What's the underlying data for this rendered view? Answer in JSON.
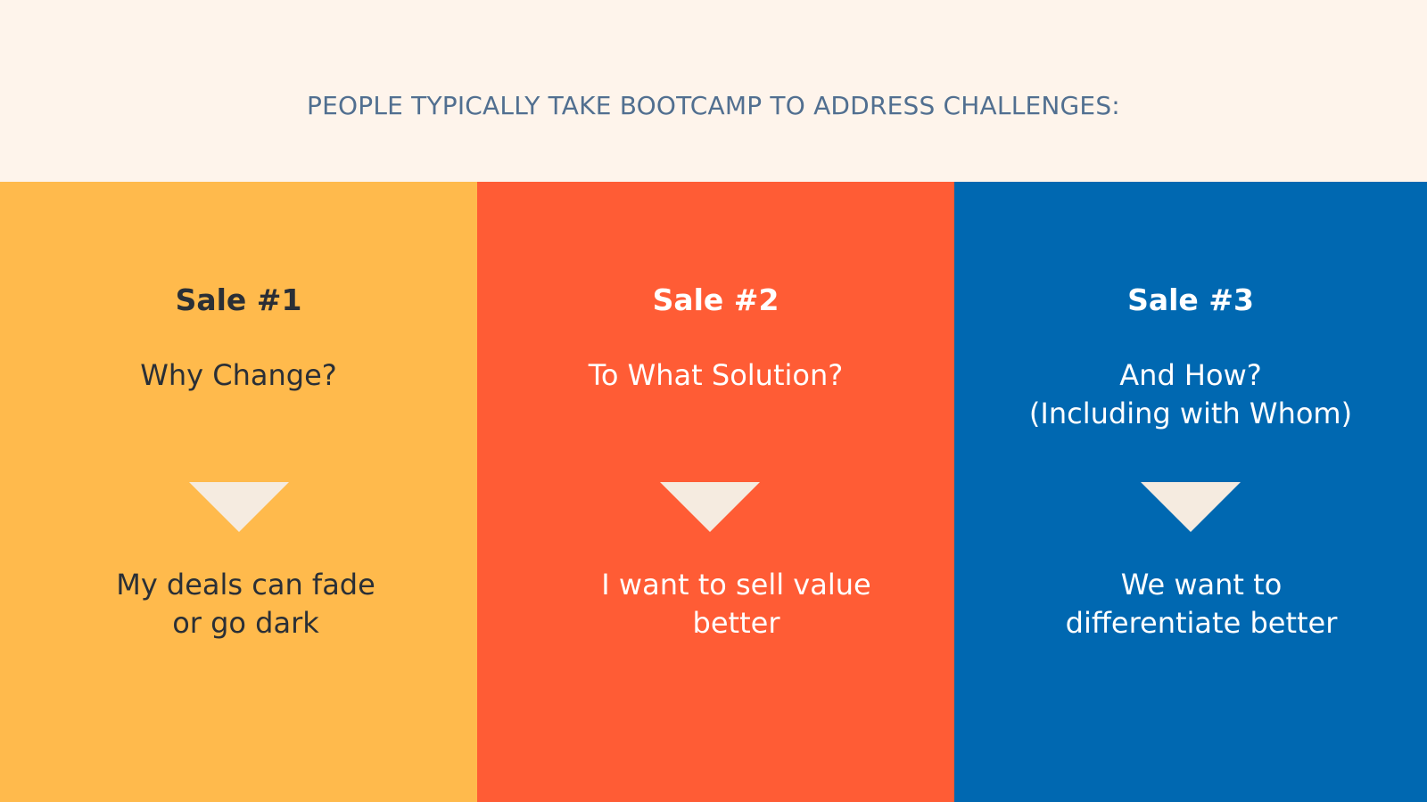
{
  "header": {
    "text": "PEOPLE TYPICALLY TAKE BOOTCAMP TO ADDRESS CHALLENGES:"
  },
  "panels": [
    {
      "title": "Sale #1",
      "question": "Why Change?",
      "answer": "My deals can fade\nor go dark",
      "background": "#FFBA4C",
      "text_color": "#2A2F36"
    },
    {
      "title": "Sale #2",
      "question": "To What Solution?",
      "answer": "I want to sell value\nbetter",
      "background": "#FF5C35",
      "text_color": "#FFFFFF"
    },
    {
      "title": "Sale #3",
      "question": "And How?\n(Including with Whom)",
      "answer": "We want to\ndifferentiate better",
      "background": "#0068B1",
      "text_color": "#FFFFFF"
    }
  ],
  "colors": {
    "header_background": "#FEF4EB",
    "header_text": "#516F90",
    "arrow": "#F5EBE0"
  }
}
